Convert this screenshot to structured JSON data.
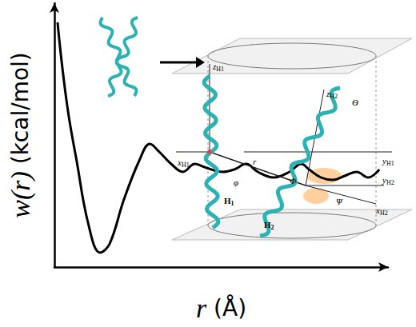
{
  "chart_data": {
    "type": "line",
    "xlabel": "r (Å)",
    "ylabel": "w(r) (kcal/mol)",
    "x": [
      4,
      10,
      18,
      28,
      43,
      58,
      70,
      88,
      108,
      121,
      133,
      148,
      163,
      178,
      193,
      213,
      228,
      243,
      258,
      278,
      298,
      313,
      323,
      338,
      353,
      368,
      383,
      398,
      412
    ],
    "values": [
      306,
      250,
      190,
      134,
      54,
      18,
      29,
      84,
      134,
      154,
      144,
      129,
      119,
      129,
      124,
      119,
      122,
      129,
      119,
      112,
      119,
      129,
      122,
      112,
      109,
      114,
      119,
      112,
      122
    ],
    "xlim": [
      0,
      423
    ],
    "ylim": [
      0,
      330
    ],
    "xticks": [],
    "yticks": [],
    "tick_labels": false,
    "grid": false,
    "color": "#000000"
  },
  "inset": {
    "labels": [
      {
        "text": "z",
        "sub": "H1"
      },
      {
        "text": "x",
        "sub": "H1"
      },
      {
        "text": "y",
        "sub": "H1"
      },
      {
        "text": "z",
        "sub": "H2"
      },
      {
        "text": "y",
        "sub": "H2"
      },
      {
        "text": "x",
        "sub": "H2"
      },
      {
        "text": "r",
        "sub": ""
      },
      {
        "text": "φ",
        "sub": ""
      },
      {
        "text": "Φ",
        "sub": ""
      },
      {
        "text": "Θ",
        "sub": ""
      },
      {
        "text": "Ψ",
        "sub": ""
      },
      {
        "text": "H",
        "sub": "1"
      },
      {
        "text": "H",
        "sub": "2"
      }
    ]
  }
}
